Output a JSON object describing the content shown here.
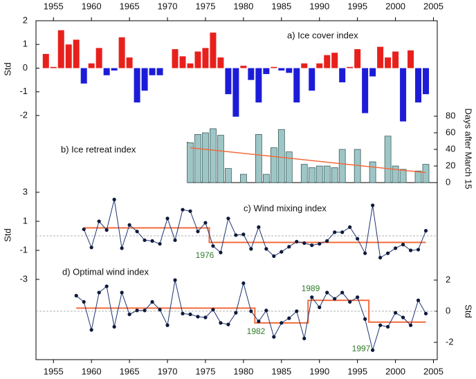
{
  "chart_data": [
    {
      "type": "bar",
      "title": "a) Ice cover index",
      "ylabel": "Std",
      "xlim": [
        1952.7,
        2005.5
      ],
      "xticks": [
        1955,
        1960,
        1965,
        1970,
        1975,
        1980,
        1985,
        1990,
        1995,
        2000,
        2005
      ],
      "ylim": [
        -2,
        2
      ],
      "yticks": [
        2,
        1,
        0,
        -1,
        -2
      ],
      "positive_color": "#e8201c",
      "negative_color": "#1c1cd8",
      "x": [
        1954,
        1955,
        1956,
        1957,
        1958,
        1959,
        1960,
        1961,
        1962,
        1963,
        1964,
        1965,
        1966,
        1967,
        1968,
        1969,
        1970,
        1971,
        1972,
        1973,
        1974,
        1975,
        1976,
        1977,
        1978,
        1979,
        1980,
        1981,
        1982,
        1983,
        1984,
        1985,
        1986,
        1987,
        1988,
        1989,
        1990,
        1991,
        1992,
        1993,
        1994,
        1995,
        1996,
        1997,
        1998,
        1999,
        2000,
        2001,
        2002,
        2003,
        2004
      ],
      "values": [
        0.6,
        0.05,
        1.6,
        1.0,
        1.2,
        -0.65,
        0.2,
        0.85,
        -0.3,
        -0.1,
        1.3,
        0.45,
        -1.45,
        -0.95,
        -0.3,
        -0.3,
        0,
        0.8,
        0.5,
        0.2,
        0.7,
        0.85,
        1.5,
        0.45,
        -1.1,
        -2.05,
        0.1,
        -0.5,
        -1.45,
        -0.25,
        0.05,
        -0.1,
        -0.2,
        -1.45,
        0.2,
        -0.95,
        0.2,
        0.55,
        0.65,
        -0.6,
        0.05,
        0.8,
        -1.9,
        -0.35,
        0.9,
        0.45,
        0.7,
        -2.25,
        0.75,
        -1.45,
        -1.1
      ]
    },
    {
      "type": "bar",
      "title": "b) Ice retreat index",
      "ylabel": "Days after March 15",
      "ylim": [
        0,
        80
      ],
      "yticks": [
        0,
        20,
        40,
        60,
        80
      ],
      "color": "#9ec6c6",
      "trend_color": "#f26a3a",
      "x": [
        1973,
        1974,
        1975,
        1976,
        1977,
        1978,
        1979,
        1980,
        1981,
        1982,
        1983,
        1984,
        1985,
        1986,
        1987,
        1988,
        1989,
        1990,
        1991,
        1992,
        1993,
        1994,
        1995,
        1996,
        1997,
        1998,
        1999,
        2000,
        2001,
        2002,
        2003,
        2004
      ],
      "values": [
        48,
        58,
        60,
        65,
        57,
        17,
        0,
        10,
        0,
        58,
        10,
        42,
        64,
        37,
        0,
        22,
        18,
        20,
        20,
        18,
        40,
        0,
        40,
        0,
        25,
        0,
        56,
        20,
        16,
        0,
        14,
        22
      ],
      "trend": {
        "x": [
          1973,
          2004
        ],
        "values": [
          42,
          12
        ]
      }
    },
    {
      "type": "line",
      "title": "c) Wind mixing index",
      "ylabel": "Std",
      "ylim": [
        -3,
        3
      ],
      "yticks": [
        3,
        1,
        -1,
        -3
      ],
      "color": "#1f3470",
      "regime_color": "#f26a3a",
      "x": [
        1959,
        1960,
        1961,
        1962,
        1963,
        1964,
        1965,
        1966,
        1967,
        1968,
        1969,
        1970,
        1971,
        1972,
        1973,
        1974,
        1975,
        1976,
        1977,
        1978,
        1979,
        1980,
        1981,
        1982,
        1983,
        1984,
        1985,
        1986,
        1987,
        1988,
        1989,
        1990,
        1991,
        1992,
        1993,
        1994,
        1995,
        1996,
        1997,
        1998,
        1999,
        2000,
        2001,
        2002,
        2003,
        2004
      ],
      "values": [
        0.45,
        -0.8,
        1.0,
        0.4,
        2.5,
        -0.85,
        0.75,
        0.3,
        -0.3,
        -0.35,
        -0.55,
        1.2,
        -0.3,
        1.8,
        1.7,
        0.3,
        0.9,
        -0.7,
        -1.15,
        1.2,
        0.05,
        0.1,
        -0.9,
        0.6,
        -0.9,
        -1.4,
        -1.1,
        -0.75,
        -0.4,
        -0.5,
        -0.65,
        -0.55,
        -0.35,
        0.25,
        0.25,
        0.6,
        -0.2,
        -1.2,
        2.1,
        -1.5,
        -1.2,
        -0.85,
        -0.6,
        -1.0,
        -0.95,
        0.35
      ],
      "regimes": [
        {
          "start": 1959,
          "end": 1975.5,
          "value": 0.55
        },
        {
          "start": 1975.5,
          "end": 2004,
          "value": -0.45
        }
      ],
      "annotations": [
        "1976"
      ]
    },
    {
      "type": "line",
      "title": "d) Optimal wind index",
      "ylabel": "Std",
      "ylim": [
        -2,
        2
      ],
      "yticks": [
        2,
        0,
        -2
      ],
      "color": "#1f3470",
      "regime_color": "#f26a3a",
      "x": [
        1958,
        1959,
        1960,
        1961,
        1962,
        1963,
        1964,
        1965,
        1966,
        1967,
        1968,
        1969,
        1970,
        1971,
        1972,
        1973,
        1974,
        1975,
        1976,
        1977,
        1978,
        1979,
        1980,
        1981,
        1982,
        1983,
        1984,
        1985,
        1986,
        1987,
        1988,
        1989,
        1990,
        1991,
        1992,
        1993,
        1994,
        1995,
        1996,
        1997,
        1998,
        1999,
        2000,
        2001,
        2002,
        2003,
        2004
      ],
      "values": [
        1.0,
        0.6,
        -1.2,
        1.2,
        1.6,
        -1.0,
        1.2,
        -0.2,
        0.05,
        0.05,
        0.6,
        0.1,
        -0.9,
        2.0,
        -0.15,
        -0.2,
        -0.35,
        -0.4,
        0.1,
        -0.75,
        -0.85,
        -0.1,
        1.8,
        0.0,
        -0.65,
        0.05,
        -1.65,
        -0.75,
        -0.45,
        0.0,
        -1.75,
        0.9,
        0.25,
        1.2,
        0.8,
        1.2,
        0.6,
        0.9,
        -0.5,
        -2.5,
        -0.9,
        -1.0,
        -0.1,
        -0.4,
        -0.9,
        0.7,
        -0.15
      ],
      "regimes": [
        {
          "start": 1958,
          "end": 1981.5,
          "value": 0.2
        },
        {
          "start": 1981.5,
          "end": 1988.5,
          "value": -0.75
        },
        {
          "start": 1988.5,
          "end": 1996.5,
          "value": 0.7
        },
        {
          "start": 1996.5,
          "end": 2004,
          "value": -0.7
        }
      ],
      "annotations": [
        "1982",
        "1989",
        "1997"
      ]
    }
  ]
}
